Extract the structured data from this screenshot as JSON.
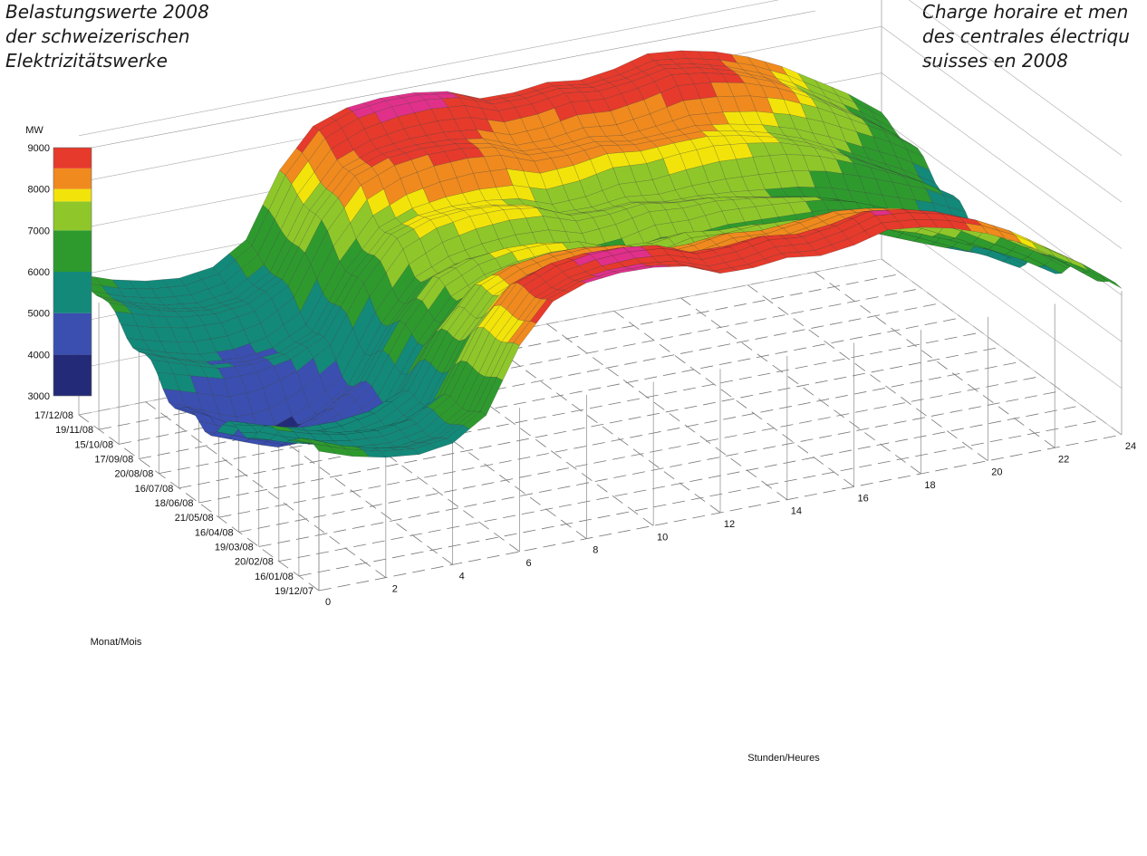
{
  "captions": {
    "de": [
      "Belastungswerte 2008",
      "der schweizerischen",
      "Elektrizitätswerke"
    ],
    "fr": [
      "Charge horaire et men",
      "des centrales électriqu",
      "suisses en 2008"
    ]
  },
  "chart_data": {
    "type": "surface-3d",
    "title": "",
    "xlabel": "Stunden/Heures",
    "ylabel": "Monat/Mois",
    "zlabel": "MW",
    "x_ticks": [
      "0",
      "2",
      "4",
      "6",
      "8",
      "10",
      "12",
      "14",
      "16",
      "18",
      "20",
      "22",
      "24"
    ],
    "y_ticks": [
      "19/12/07",
      "16/01/08",
      "20/02/08",
      "19/03/08",
      "16/04/08",
      "21/05/08",
      "18/06/08",
      "16/07/08",
      "20/08/08",
      "17/09/08",
      "15/10/08",
      "19/11/08",
      "17/12/08"
    ],
    "z_ticks": [
      "3000",
      "4000",
      "5000",
      "6000",
      "7000",
      "8000",
      "9000"
    ],
    "zlim": [
      3000,
      9000
    ],
    "color_scale": [
      {
        "from": 3000,
        "to": 4000,
        "color": "#232a78"
      },
      {
        "from": 4000,
        "to": 5000,
        "color": "#3a4fb0"
      },
      {
        "from": 5000,
        "to": 6000,
        "color": "#13897a"
      },
      {
        "from": 6000,
        "to": 7000,
        "color": "#2e9a2e"
      },
      {
        "from": 7000,
        "to": 7700,
        "color": "#8fc72a"
      },
      {
        "from": 7700,
        "to": 8000,
        "color": "#f2e40a"
      },
      {
        "from": 8000,
        "to": 8500,
        "color": "#f08a1e"
      },
      {
        "from": 8500,
        "to": 9000,
        "color": "#e63a2c"
      },
      {
        "from": 9000,
        "to": 9600,
        "color": "#e0308a"
      }
    ],
    "hourly_profile_winter_MW": [
      6300,
      6000,
      5800,
      5700,
      5800,
      6300,
      7800,
      8700,
      9000,
      9100,
      9100,
      9000,
      8700,
      8700,
      8800,
      8700,
      8800,
      9000,
      8900,
      8700,
      8400,
      8000,
      7500,
      7000,
      6400
    ],
    "hourly_profile_summer_MW": [
      5000,
      4800,
      4600,
      4600,
      4700,
      5000,
      6200,
      7100,
      7400,
      7500,
      7500,
      7400,
      7100,
      7100,
      7200,
      7100,
      7100,
      7000,
      6900,
      6800,
      6600,
      6300,
      6000,
      5700,
      5300
    ]
  }
}
